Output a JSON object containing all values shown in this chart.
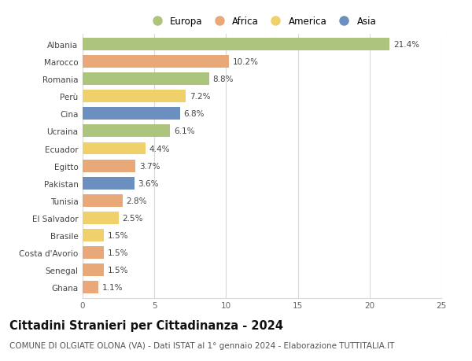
{
  "countries": [
    "Albania",
    "Marocco",
    "Romania",
    "Perù",
    "Cina",
    "Ucraina",
    "Ecuador",
    "Egitto",
    "Pakistan",
    "Tunisia",
    "El Salvador",
    "Brasile",
    "Costa d'Avorio",
    "Senegal",
    "Ghana"
  ],
  "values": [
    21.4,
    10.2,
    8.8,
    7.2,
    6.8,
    6.1,
    4.4,
    3.7,
    3.6,
    2.8,
    2.5,
    1.5,
    1.5,
    1.5,
    1.1
  ],
  "continents": [
    "Europa",
    "Africa",
    "Europa",
    "America",
    "Asia",
    "Europa",
    "America",
    "Africa",
    "Asia",
    "Africa",
    "America",
    "America",
    "Africa",
    "Africa",
    "Africa"
  ],
  "continent_colors": {
    "Europa": "#adc47d",
    "Africa": "#e8a878",
    "America": "#f0d06a",
    "Asia": "#6b8fbf"
  },
  "legend_order": [
    "Europa",
    "Africa",
    "America",
    "Asia"
  ],
  "title": "Cittadini Stranieri per Cittadinanza - 2024",
  "subtitle": "COMUNE DI OLGIATE OLONA (VA) - Dati ISTAT al 1° gennaio 2024 - Elaborazione TUTTITALIA.IT",
  "xlim": [
    0,
    25
  ],
  "xticks": [
    0,
    5,
    10,
    15,
    20,
    25
  ],
  "background_color": "#ffffff",
  "grid_color": "#d8d8d8",
  "bar_height": 0.72,
  "title_fontsize": 10.5,
  "subtitle_fontsize": 7.5,
  "label_fontsize": 7.5,
  "tick_fontsize": 7.5,
  "legend_fontsize": 8.5
}
